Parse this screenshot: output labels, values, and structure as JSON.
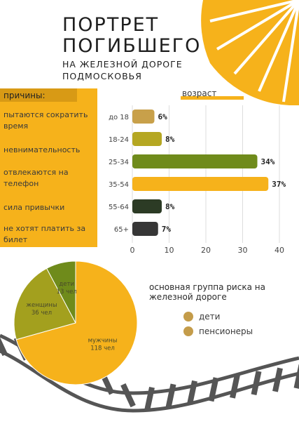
{
  "title": {
    "line1": "ПОРТРЕТ",
    "line2": "ПОГИБШЕГО",
    "line3": "НА ЖЕЛЕЗНОЙ ДОРОГЕ",
    "line4": "ПОДМОСКОВЬЯ"
  },
  "reasons": {
    "header": "причины:",
    "items": [
      "пытаются сократить время",
      "невнимательность",
      "отвлекаются на телефон",
      "сила привычки",
      "не хотят платить за билет"
    ]
  },
  "risk_group": {
    "line1": "основная группа риска на",
    "line2": "железной дороге",
    "legend": [
      "дети",
      "пенсионеры"
    ],
    "legend_color": "#c49c4a"
  },
  "colors": {
    "accent": "#f6b21b",
    "accent_dark": "#d89a15"
  },
  "chart_data": [
    {
      "type": "bar",
      "orientation": "horizontal",
      "title": "возраст",
      "categories": [
        "до 18",
        "18-24",
        "25-34",
        "35-54",
        "55-64",
        "65+"
      ],
      "values": [
        6,
        8,
        34,
        37,
        8,
        7
      ],
      "value_labels": [
        "6%",
        "8%",
        "34%",
        "37%",
        "8%",
        "7%"
      ],
      "colors": [
        "#c8a04a",
        "#b5a722",
        "#6f8b1b",
        "#f6b21b",
        "#2c3b25",
        "#363636"
      ],
      "xlim": [
        0,
        40
      ],
      "xticks": [
        0,
        10,
        20,
        30,
        40
      ],
      "grid": true
    },
    {
      "type": "pie",
      "slices": [
        {
          "label": "мужчины",
          "value_label": "118 чел",
          "value": 118,
          "color": "#f6b21b"
        },
        {
          "label": "женщины",
          "value_label": "36 чел",
          "value": 36,
          "color": "#a3a01e"
        },
        {
          "label": "дети",
          "value_label": "13 чел",
          "value": 13,
          "color": "#6f8b1b"
        }
      ]
    }
  ]
}
